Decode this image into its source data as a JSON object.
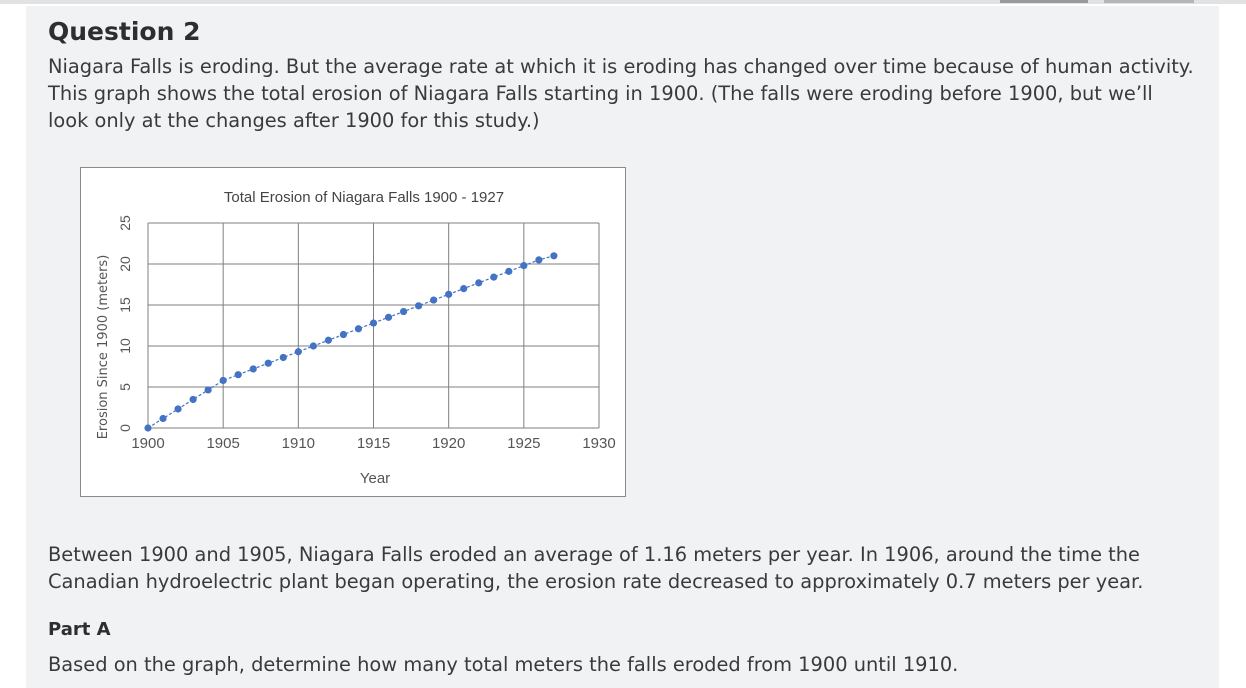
{
  "question": {
    "title": "Question 2",
    "intro": "Niagara Falls is eroding. But the average rate at which it is eroding has changed over time because of human activity. This graph shows the total erosion of Niagara Falls starting in 1900. (The falls were eroding before 1900, but we’ll look only at the changes after 1900 for this study.)",
    "body": "Between 1900 and 1905, Niagara Falls eroded an average of 1.16 meters per year. In 1906, around the time the Canadian hydroelectric plant began operating, the erosion rate decreased to approximately 0.7 meters per year.",
    "part_label": "Part A",
    "part_question": "Based on the graph, determine how many total meters the falls eroded from 1900 until 1910."
  },
  "colors": {
    "series": "#4472c4",
    "grid": "#7f7f7f",
    "panel": "#f1f2f4"
  },
  "chart_data": {
    "type": "line",
    "title": "Total Erosion of Niagara Falls 1900 - 1927",
    "xlabel": "Year",
    "ylabel": "Erosion Since 1900 (meters)",
    "xlim": [
      1900,
      1930
    ],
    "ylim": [
      0,
      25
    ],
    "x_ticks": [
      1900,
      1905,
      1910,
      1915,
      1920,
      1925,
      1930
    ],
    "y_ticks": [
      0,
      5,
      10,
      15,
      20,
      25
    ],
    "grid": true,
    "legend": "none",
    "series": [
      {
        "x": [
          1900,
          1901,
          1902,
          1903,
          1904,
          1905,
          1906,
          1907,
          1908,
          1909,
          1910,
          1911,
          1912,
          1913,
          1914,
          1915,
          1916,
          1917,
          1918,
          1919,
          1920,
          1921,
          1922,
          1923,
          1924,
          1925,
          1926,
          1927
        ],
        "values": [
          0,
          1.16,
          2.32,
          3.48,
          4.64,
          5.8,
          6.5,
          7.2,
          7.9,
          8.6,
          9.3,
          10.0,
          10.7,
          11.4,
          12.1,
          12.8,
          13.5,
          14.2,
          14.9,
          15.6,
          16.3,
          17.0,
          17.7,
          18.4,
          19.1,
          19.8,
          20.5,
          21.0
        ]
      }
    ]
  }
}
